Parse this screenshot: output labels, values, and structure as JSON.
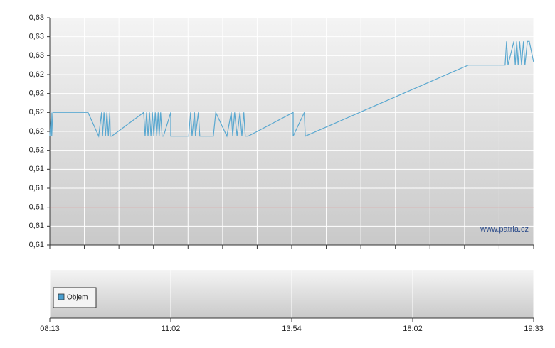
{
  "chart_data": [
    {
      "type": "line",
      "watermark": "www.patria.cz",
      "x": [
        0,
        0.3,
        0.4,
        0.6,
        7.9,
        10.1,
        10.7,
        10.9,
        11.2,
        11.5,
        11.8,
        12.1,
        12.4,
        12.5,
        12.8,
        19.4,
        19.7,
        20,
        20.3,
        20.6,
        20.9,
        21.2,
        21.5,
        21.8,
        22.1,
        22.4,
        22.6,
        22.9,
        23.2,
        23.5,
        25,
        25,
        28.7,
        29.1,
        29.4,
        29.9,
        30.1,
        30.7,
        31,
        33.8,
        34.3,
        36.6,
        37.5,
        37.8,
        38.2,
        38.7,
        39.3,
        39.7,
        40.1,
        40.4,
        41,
        50.3,
        50.3,
        52.6,
        52.8,
        86.5,
        94.1,
        94.4,
        94.7,
        95.9,
        96.2,
        96.5,
        96.8,
        97.1,
        97.5,
        97.9,
        98.2,
        98.7,
        99.1,
        100
      ],
      "series": [
        {
          "color": "#5aa8d0",
          "values": [
            0.6175,
            0.62,
            0.6175,
            0.62,
            0.62,
            0.6175,
            0.62,
            0.6175,
            0.62,
            0.6175,
            0.62,
            0.6175,
            0.62,
            0.6175,
            0.6175,
            0.62,
            0.6175,
            0.62,
            0.6175,
            0.62,
            0.6175,
            0.62,
            0.6175,
            0.62,
            0.6175,
            0.62,
            0.6175,
            0.62,
            0.6175,
            0.6175,
            0.62,
            0.6175,
            0.6175,
            0.62,
            0.6175,
            0.62,
            0.6175,
            0.62,
            0.6175,
            0.6175,
            0.62,
            0.6175,
            0.62,
            0.6175,
            0.62,
            0.6175,
            0.62,
            0.6175,
            0.62,
            0.6175,
            0.6175,
            0.62,
            0.6175,
            0.62,
            0.6175,
            0.625,
            0.625,
            0.6275,
            0.625,
            0.6275,
            0.625,
            0.6275,
            0.625,
            0.6275,
            0.625,
            0.6275,
            0.625,
            0.6275,
            0.6275,
            0.6253
          ]
        }
      ],
      "reference": {
        "value": 0.61,
        "color": "#d05050"
      },
      "xlim": [
        0,
        100
      ],
      "ylim": [
        0.606,
        0.63
      ],
      "yticks": [
        {
          "value": 0.606,
          "label": "0,61"
        },
        {
          "value": 0.608,
          "label": "0,61"
        },
        {
          "value": 0.61,
          "label": "0,61"
        },
        {
          "value": 0.612,
          "label": "0,61"
        },
        {
          "value": 0.614,
          "label": "0,61"
        },
        {
          "value": 0.616,
          "label": "0,62"
        },
        {
          "value": 0.618,
          "label": "0,62"
        },
        {
          "value": 0.62,
          "label": "0,62"
        },
        {
          "value": 0.622,
          "label": "0,62"
        },
        {
          "value": 0.624,
          "label": "0,62"
        },
        {
          "value": 0.626,
          "label": "0,63"
        },
        {
          "value": 0.628,
          "label": "0,63"
        },
        {
          "value": 0.63,
          "label": "0,63"
        }
      ],
      "grid": true
    },
    {
      "type": "bar",
      "series": [
        {
          "name": "Objem",
          "color": "#4a9fd0",
          "values": []
        }
      ],
      "xlim": [
        0,
        100
      ],
      "xticks": [
        {
          "value": 0,
          "label": "08:13"
        },
        {
          "value": 25,
          "label": "11:02"
        },
        {
          "value": 50,
          "label": "13:54"
        },
        {
          "value": 75,
          "label": "18:02"
        },
        {
          "value": 100,
          "label": "19:33"
        }
      ],
      "grid": true
    }
  ]
}
